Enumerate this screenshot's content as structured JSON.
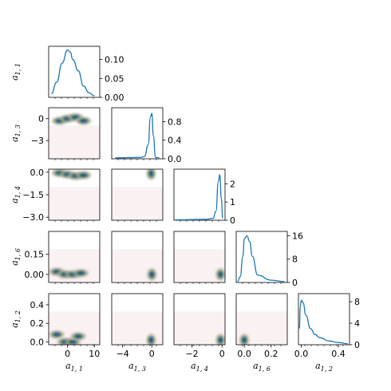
{
  "chart_data": {
    "type": "corner",
    "parameters": [
      "a_{1,1}",
      "a_{1,3}",
      "a_{1,4}",
      "a_{1,6}",
      "a_{1,2}"
    ],
    "axis_labels": [
      {
        "base": "a",
        "sub": "1, 1"
      },
      {
        "base": "a",
        "sub": "1, 3"
      },
      {
        "base": "a",
        "sub": "1, 4"
      },
      {
        "base": "a",
        "sub": "1, 6"
      },
      {
        "base": "a",
        "sub": "1, 2"
      }
    ],
    "ranges": [
      [
        -7,
        12
      ],
      [
        -5.5,
        1.5
      ],
      [
        -3.2,
        0.2
      ],
      [
        -0.06,
        0.32
      ],
      [
        -0.03,
        0.52
      ]
    ],
    "x_ticks": [
      {
        "values": [
          0,
          10
        ],
        "labels": [
          "0",
          "10"
        ]
      },
      {
        "values": [
          -4,
          0
        ],
        "labels": [
          "−4",
          "0"
        ]
      },
      {
        "values": [
          -2,
          0
        ],
        "labels": [
          "−2",
          "0"
        ]
      },
      {
        "values": [
          0.0,
          0.2
        ],
        "labels": [
          "0.0",
          "0.2"
        ]
      },
      {
        "values": [
          0.0,
          0.4
        ],
        "labels": [
          "0.0",
          "0.4"
        ]
      }
    ],
    "y_ticks": [
      null,
      {
        "values": [
          0,
          -3
        ],
        "labels": [
          "0",
          "−3"
        ]
      },
      {
        "values": [
          0.0,
          -1.5,
          -3.0
        ],
        "labels": [
          "0.0",
          "−1.5",
          "−3.0"
        ]
      },
      {
        "values": [
          0.15,
          0.0
        ],
        "labels": [
          "0.15",
          "0.00"
        ]
      },
      {
        "values": [
          0.4,
          0.2,
          0.0
        ],
        "labels": [
          "0.4",
          "0.2",
          "0.0"
        ]
      }
    ],
    "marginals": [
      {
        "param": "a_{1,1}",
        "ylim": [
          0,
          0.135
        ],
        "ticks": [
          0.0,
          0.05,
          0.1
        ],
        "tick_labels": [
          "0.00",
          "0.05",
          "0.10"
        ],
        "curve": {
          "x": [
            -6,
            -4,
            -2,
            0,
            1,
            2,
            4,
            6,
            8,
            10
          ],
          "y": [
            0.01,
            0.04,
            0.09,
            0.125,
            0.12,
            0.1,
            0.07,
            0.03,
            0.012,
            0.004
          ]
        }
      },
      {
        "param": "a_{1,3}",
        "ylim": [
          0,
          1.1
        ],
        "ticks": [
          0.0,
          0.4,
          0.8
        ],
        "tick_labels": [
          "0.0",
          "0.4",
          "0.8"
        ],
        "curve": {
          "x": [
            -5,
            -1.5,
            -1,
            -0.5,
            -0.2,
            0,
            0.2,
            0.5,
            1
          ],
          "y": [
            0.02,
            0.03,
            0.05,
            0.3,
            0.9,
            0.98,
            0.5,
            0.03,
            0.02
          ]
        }
      },
      {
        "param": "a_{1,4}",
        "ylim": [
          0,
          2.8
        ],
        "ticks": [
          0,
          1,
          2
        ],
        "tick_labels": [
          "0",
          "1",
          "2"
        ],
        "curve": {
          "x": [
            -3.1,
            -1,
            -0.6,
            -0.4,
            -0.25,
            -0.15,
            -0.05,
            0.05
          ],
          "y": [
            0.02,
            0.05,
            0.1,
            0.5,
            2.1,
            2.5,
            1.2,
            0.1
          ]
        }
      },
      {
        "param": "a_{1,6}",
        "ylim": [
          0,
          17.5
        ],
        "ticks": [
          0,
          8,
          16
        ],
        "tick_labels": [
          "0",
          "8",
          "16"
        ],
        "curve": {
          "x": [
            -0.05,
            -0.03,
            -0.01,
            0.0,
            0.02,
            0.04,
            0.06,
            0.1,
            0.2,
            0.3
          ],
          "y": [
            0.3,
            2,
            9,
            15,
            16,
            14,
            9,
            2.5,
            0.8,
            0.3
          ]
        }
      },
      {
        "param": "a_{1,2}",
        "ylim": [
          0,
          9.5
        ],
        "ticks": [
          0,
          4,
          8
        ],
        "tick_labels": [
          "0",
          "4",
          "8"
        ],
        "curve": {
          "x": [
            -0.02,
            -0.01,
            0.0,
            0.02,
            0.05,
            0.1,
            0.15,
            0.2,
            0.3,
            0.4,
            0.5
          ],
          "y": [
            3,
            7,
            8.3,
            7.8,
            5.5,
            3,
            1.9,
            1.3,
            0.7,
            0.4,
            0.2
          ]
        }
      }
    ],
    "joint_densities": [
      {
        "x": "a_{1,1}",
        "y": "a_{1,3}",
        "shape": "diagonal-ridge",
        "points": [
          [
            -3,
            -0.3
          ],
          [
            0,
            0
          ],
          [
            3,
            0.2
          ],
          [
            6,
            -0.3
          ]
        ]
      },
      {
        "x": "a_{1,1}",
        "y": "a_{1,4}",
        "shape": "ridge",
        "points": [
          [
            -3,
            -0.05
          ],
          [
            0,
            -0.15
          ],
          [
            3,
            -0.25
          ],
          [
            6,
            -0.2
          ]
        ]
      },
      {
        "x": "a_{1,3}",
        "y": "a_{1,4}",
        "shape": "spot",
        "points": [
          [
            -0.1,
            -0.1
          ]
        ]
      },
      {
        "x": "a_{1,1}",
        "y": "a_{1,6}",
        "shape": "u-shape",
        "points": [
          [
            -4,
            0.02
          ],
          [
            -1,
            0.0
          ],
          [
            2,
            0.0
          ],
          [
            5,
            0.01
          ]
        ]
      },
      {
        "x": "a_{1,3}",
        "y": "a_{1,6}",
        "shape": "spot",
        "points": [
          [
            0,
            0.0
          ]
        ]
      },
      {
        "x": "a_{1,4}",
        "y": "a_{1,6}",
        "shape": "spot",
        "points": [
          [
            -0.1,
            0.0
          ]
        ]
      },
      {
        "x": "a_{1,1}",
        "y": "a_{1,2}",
        "shape": "u-shape",
        "points": [
          [
            -4,
            0.08
          ],
          [
            -1,
            0.0
          ],
          [
            2,
            0.0
          ],
          [
            4,
            0.06
          ]
        ]
      },
      {
        "x": "a_{1,3}",
        "y": "a_{1,2}",
        "shape": "spot",
        "points": [
          [
            -0.1,
            0.02
          ]
        ]
      },
      {
        "x": "a_{1,4}",
        "y": "a_{1,2}",
        "shape": "spot",
        "points": [
          [
            -0.1,
            0.02
          ]
        ]
      },
      {
        "x": "a_{1,6}",
        "y": "a_{1,2}",
        "shape": "spot",
        "points": [
          [
            0.0,
            0.02
          ]
        ]
      }
    ],
    "colors": {
      "line": "#1f77b4",
      "density_low": "#f5e1e4",
      "density_mid": "#c79aa0",
      "density_green": "#7fb26e",
      "density_high": "#1c4e7a"
    },
    "grid": false,
    "legend": null
  }
}
